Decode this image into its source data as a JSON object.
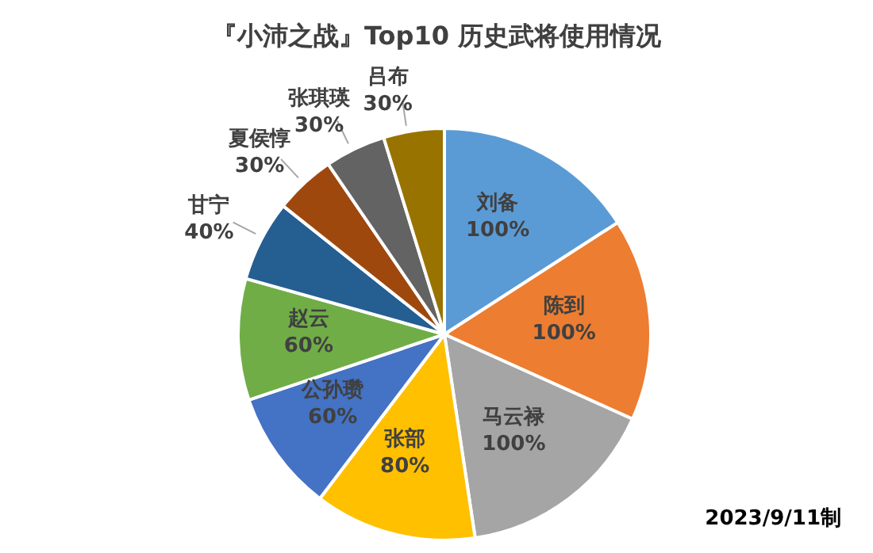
{
  "chart_data": {
    "type": "pie",
    "title": "『小沛之战』Top10 历史武将使用情况",
    "categories": [
      "刘备",
      "陈到",
      "马云禄",
      "张部",
      "公孙瓒",
      "赵云",
      "甘宁",
      "夏侯惇",
      "张琪瑛",
      "吕布"
    ],
    "values": [
      100,
      100,
      100,
      80,
      60,
      60,
      40,
      30,
      30,
      30
    ],
    "value_labels": [
      "100%",
      "100%",
      "100%",
      "80%",
      "60%",
      "60%",
      "40%",
      "30%",
      "30%",
      "30%"
    ],
    "colors": [
      "#5b9bd5",
      "#ed7d31",
      "#a5a5a5",
      "#ffc000",
      "#4472c4",
      "#70ad47",
      "#255e91",
      "#9e480e",
      "#636363",
      "#997300"
    ],
    "annotations": [
      "2023/9/11制"
    ],
    "legend": false
  }
}
